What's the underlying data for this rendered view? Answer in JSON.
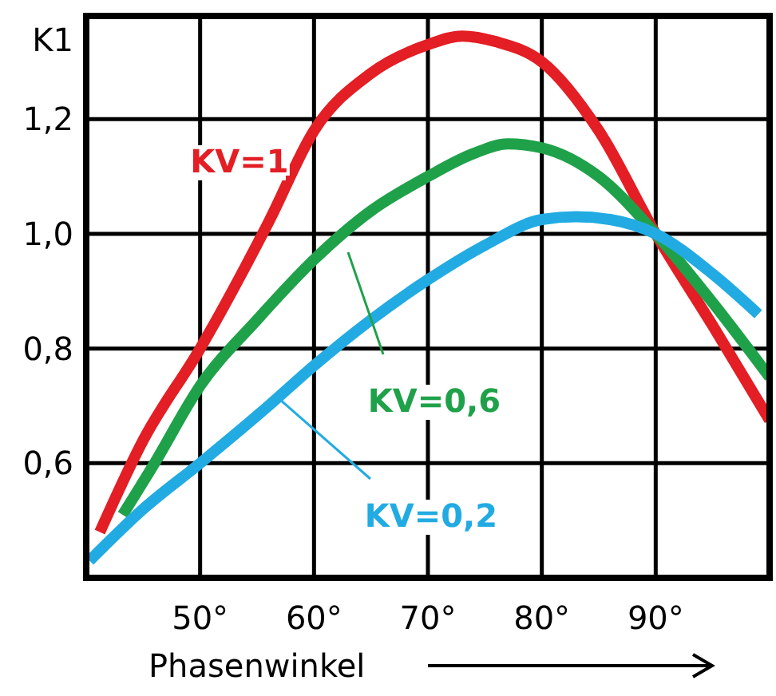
{
  "chart_data": {
    "type": "line",
    "ylabel": "K1",
    "xlabel": "Phasenwinkel",
    "xlim": [
      40,
      100
    ],
    "ylim": [
      0.4,
      1.38
    ],
    "xticks": [
      {
        "value": 50,
        "label": "50°"
      },
      {
        "value": 60,
        "label": "60°"
      },
      {
        "value": 70,
        "label": "70°"
      },
      {
        "value": 80,
        "label": "80°"
      },
      {
        "value": 90,
        "label": "90°"
      }
    ],
    "yticks": [
      {
        "value": 0.6,
        "label": "0,6"
      },
      {
        "value": 0.8,
        "label": "0,8"
      },
      {
        "value": 1.0,
        "label": "1,0"
      },
      {
        "value": 1.2,
        "label": "1,2"
      }
    ],
    "grid": true,
    "marker": "none",
    "line_style": "solid",
    "series": [
      {
        "name": "KV=1",
        "color": "#e31e24",
        "x": [
          41.2,
          45,
          50,
          56,
          60,
          65,
          70,
          73,
          76,
          80,
          85,
          90,
          95,
          100
        ],
        "values": [
          0.48,
          0.64,
          0.8,
          1.02,
          1.18,
          1.28,
          1.33,
          1.345,
          1.335,
          1.3,
          1.18,
          1.0,
          0.84,
          0.675
        ]
      },
      {
        "name": "KV=0,6",
        "color": "#1fa14a",
        "x": [
          43.2,
          46,
          50,
          55,
          60,
          65,
          70,
          74,
          77,
          80,
          85,
          90,
          95,
          100
        ],
        "values": [
          0.51,
          0.6,
          0.735,
          0.85,
          0.955,
          1.04,
          1.1,
          1.14,
          1.157,
          1.15,
          1.1,
          1.0,
          0.88,
          0.75
        ]
      },
      {
        "name": "KV=0,2",
        "color": "#22abe2",
        "x": [
          40.3,
          45,
          50,
          56,
          60,
          65,
          70,
          75,
          80,
          83,
          86,
          90,
          95,
          99
        ],
        "values": [
          0.43,
          0.52,
          0.6,
          0.7,
          0.77,
          0.85,
          0.92,
          0.98,
          1.025,
          1.03,
          1.025,
          1.0,
          0.93,
          0.86
        ]
      }
    ]
  }
}
